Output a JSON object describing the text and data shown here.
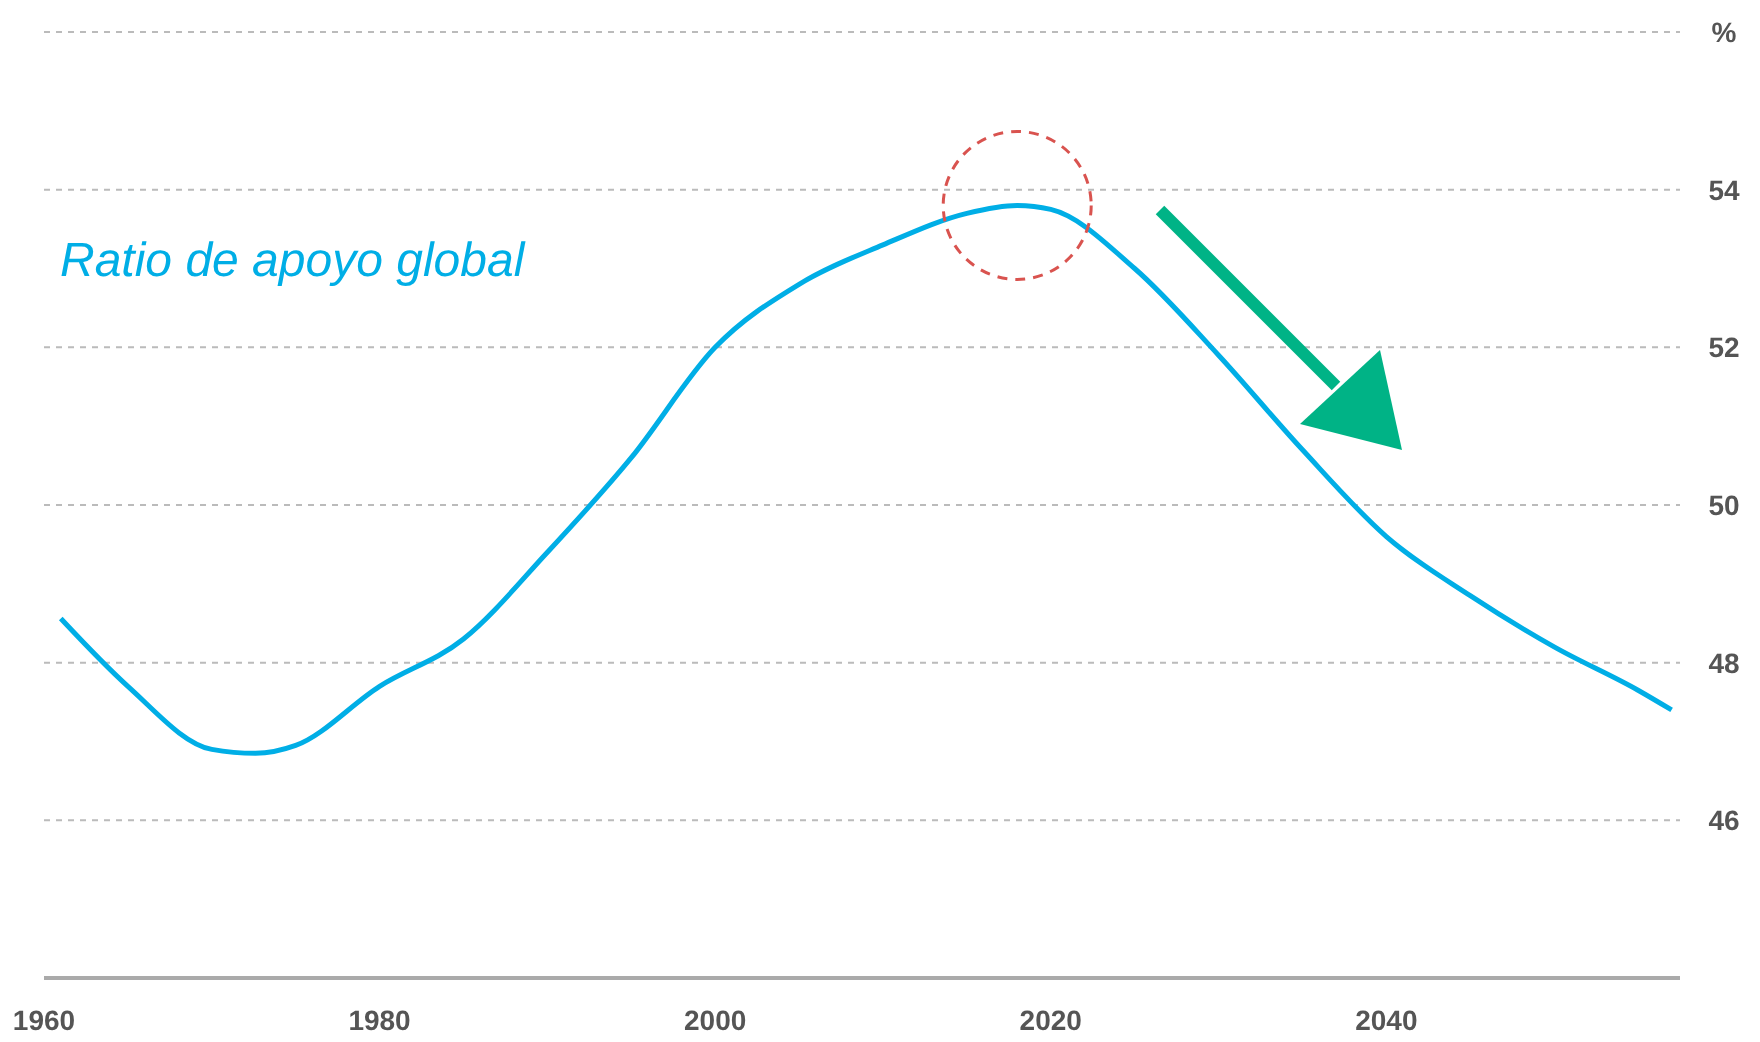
{
  "chart_data": {
    "type": "line",
    "x": [
      1961,
      1965,
      1970,
      1972.6,
      1975,
      1980,
      1985,
      1990,
      1995,
      2000,
      2005,
      2010,
      2015,
      2018,
      2020,
      2025,
      2030,
      2035,
      2040,
      2045,
      2050,
      2055,
      2057
    ],
    "series": [
      {
        "name": "Ratio de apoyo global",
        "color": "#00aee6",
        "values": [
          48.56,
          47.7,
          46.9,
          46.85,
          46.95,
          47.7,
          48.3,
          49.4,
          50.6,
          52.0,
          52.8,
          53.3,
          53.7,
          53.8,
          53.75,
          53.0,
          51.9,
          50.7,
          49.6,
          48.85,
          48.2,
          47.65,
          47.4
        ]
      }
    ],
    "xlim": [
      1960,
      2057.5
    ],
    "xticks": [
      1960,
      1980,
      2000,
      2020,
      2040
    ],
    "ylim": [
      44,
      56
    ],
    "yticks": [
      46,
      48,
      50,
      52,
      54,
      {
        "value": 56,
        "label": "%"
      }
    ],
    "grid": "y",
    "legend": false,
    "marker": "none",
    "line_style": "solid"
  }
}
